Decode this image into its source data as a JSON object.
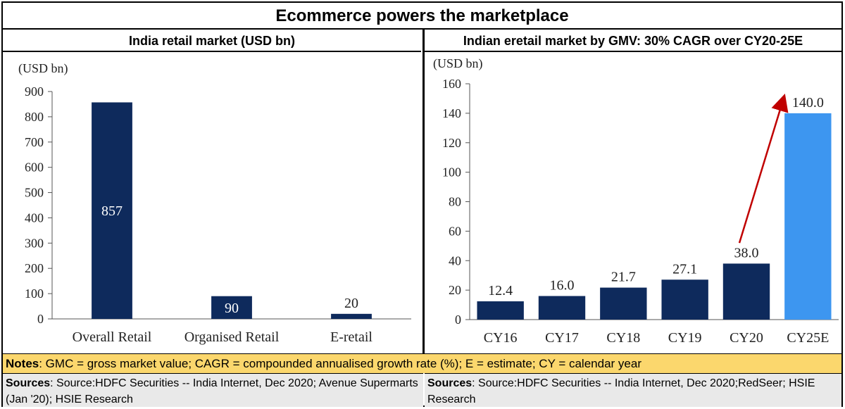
{
  "title": "Ecommerce powers the marketplace",
  "colors": {
    "dark_bar": "#0e2a5c",
    "highlight_bar": "#3d96f0",
    "arrow": "#c00000",
    "notes_bg": "#fbd76d",
    "sources_bg": "#e9e9e9"
  },
  "chart_data": [
    {
      "type": "bar",
      "title": "India retail market (USD bn)",
      "ylabel": "(USD bn)",
      "categories": [
        "Overall Retail",
        "Organised Retail",
        "E-retail"
      ],
      "values": [
        857,
        90,
        20
      ],
      "data_labels": [
        "857",
        "90",
        "20"
      ],
      "ylim": [
        0,
        900
      ],
      "yticks": [
        0,
        100,
        200,
        300,
        400,
        500,
        600,
        700,
        800,
        900
      ],
      "ytick_labels": [
        "0",
        "100",
        "200",
        "300",
        "400",
        "500",
        "600",
        "700",
        "800",
        "900"
      ],
      "grid": false
    },
    {
      "type": "bar",
      "title": "Indian eretail market by GMV: 30% CAGR over CY20-25E",
      "ylabel": "(USD bn)",
      "categories": [
        "CY16",
        "CY17",
        "CY18",
        "CY19",
        "CY20",
        "CY25E"
      ],
      "values": [
        12.4,
        16.0,
        21.7,
        27.1,
        38.0,
        140.0
      ],
      "data_labels": [
        "12.4",
        "16.0",
        "21.7",
        "27.1",
        "38.0",
        "140.0"
      ],
      "highlight_index": 5,
      "ylim": [
        0,
        160
      ],
      "yticks": [
        0,
        20,
        40,
        60,
        80,
        100,
        120,
        140,
        160
      ],
      "ytick_labels": [
        "0",
        "20",
        "40",
        "60",
        "80",
        "100",
        "120",
        "140",
        "160"
      ],
      "grid": false,
      "annotation": {
        "type": "arrow",
        "from_category": "CY20",
        "to_category": "CY25E",
        "from_value": 52,
        "to_value": 151
      }
    }
  ],
  "notes": {
    "label": "Notes",
    "text": ": GMC = gross market value; CAGR = compounded annualised growth rate (%); E = estimate; CY = calendar year"
  },
  "sources_left": {
    "label": "Sources",
    "text": ":  Source:HDFC Securities -- India Internet, Dec 2020; Avenue Supermarts (Jan '20); HSIE Research"
  },
  "sources_right": {
    "label": "Sources",
    "text": ":  Source:HDFC Securities -- India Internet, Dec 2020;RedSeer; HSIE Research"
  }
}
